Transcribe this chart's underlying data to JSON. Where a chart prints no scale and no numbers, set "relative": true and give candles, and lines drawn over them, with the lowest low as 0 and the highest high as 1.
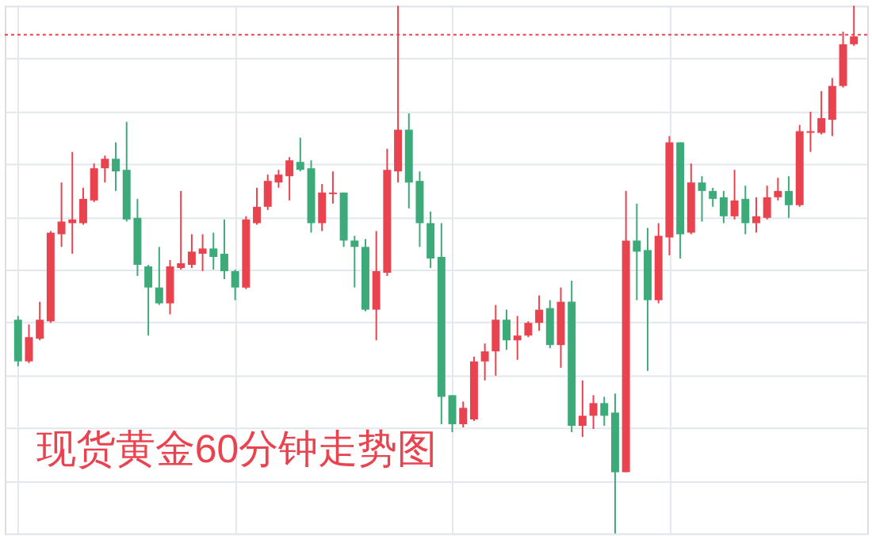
{
  "chart_data": {
    "type": "candlestick",
    "relative": true,
    "grid": true,
    "tick_labels": false,
    "annotations": [
      "现货黄金60分钟走势图"
    ],
    "ref_lines": [
      {
        "axis": "y",
        "value": 0.945,
        "label": null,
        "color": "#e8434f",
        "line_style": "dotted"
      }
    ],
    "categories": [
      null,
      null,
      null,
      null,
      null,
      null,
      null,
      null,
      null,
      null,
      null,
      null,
      null,
      null,
      null,
      null,
      null,
      null,
      null,
      null,
      null,
      null,
      null,
      null,
      null,
      null,
      null,
      null,
      null,
      null,
      null,
      null,
      null,
      null,
      null,
      null,
      null,
      null,
      null,
      null,
      null,
      null,
      null,
      null,
      null,
      null,
      null,
      null,
      null,
      null,
      null,
      null,
      null,
      null,
      null,
      null,
      null,
      null,
      null,
      null,
      null,
      null,
      null,
      null,
      null,
      null,
      null,
      null,
      null,
      null,
      null,
      null,
      null,
      null,
      null,
      null,
      null,
      null
    ],
    "ohlc": [
      [
        0.405,
        0.412,
        0.317,
        0.326
      ],
      [
        0.326,
        0.396,
        0.323,
        0.372
      ],
      [
        0.369,
        0.439,
        0.366,
        0.405
      ],
      [
        0.402,
        0.573,
        0.399,
        0.57
      ],
      [
        0.567,
        0.665,
        0.543,
        0.591
      ],
      [
        0.588,
        0.723,
        0.53,
        0.595
      ],
      [
        0.588,
        0.655,
        0.585,
        0.634
      ],
      [
        0.631,
        0.701,
        0.628,
        0.692
      ],
      [
        0.692,
        0.716,
        0.665,
        0.71
      ],
      [
        0.71,
        0.741,
        0.649,
        0.686
      ],
      [
        0.689,
        0.78,
        0.591,
        0.595
      ],
      [
        0.598,
        0.634,
        0.488,
        0.509
      ],
      [
        0.506,
        0.509,
        0.375,
        0.466
      ],
      [
        0.466,
        0.543,
        0.433,
        0.436
      ],
      [
        0.436,
        0.518,
        0.415,
        0.506
      ],
      [
        0.503,
        0.649,
        0.5,
        0.512
      ],
      [
        0.509,
        0.567,
        0.503,
        0.534
      ],
      [
        0.53,
        0.567,
        0.497,
        0.54
      ],
      [
        0.54,
        0.57,
        0.5,
        0.524
      ],
      [
        0.53,
        0.595,
        0.482,
        0.497
      ],
      [
        0.497,
        0.5,
        0.442,
        0.466
      ],
      [
        0.466,
        0.601,
        0.463,
        0.595
      ],
      [
        0.588,
        0.655,
        0.585,
        0.619
      ],
      [
        0.619,
        0.68,
        0.613,
        0.668
      ],
      [
        0.665,
        0.689,
        0.655,
        0.68
      ],
      [
        0.677,
        0.713,
        0.631,
        0.707
      ],
      [
        0.704,
        0.75,
        0.686,
        0.689
      ],
      [
        0.692,
        0.707,
        0.57,
        0.588
      ],
      [
        0.588,
        0.662,
        0.573,
        0.646
      ],
      [
        0.643,
        0.686,
        0.625,
        0.646
      ],
      [
        0.646,
        0.646,
        0.543,
        0.555
      ],
      [
        0.555,
        0.564,
        0.466,
        0.543
      ],
      [
        0.543,
        0.558,
        0.421,
        0.424
      ],
      [
        0.424,
        0.573,
        0.366,
        0.497
      ],
      [
        0.494,
        0.729,
        0.488,
        0.689
      ],
      [
        0.686,
        1,
        0.665,
        0.765
      ],
      [
        0.765,
        0.796,
        0.616,
        0.665
      ],
      [
        0.668,
        0.686,
        0.543,
        0.588
      ],
      [
        0.588,
        0.61,
        0.503,
        0.521
      ],
      [
        0.524,
        0.588,
        0.207,
        0.259
      ],
      [
        0.262,
        0.262,
        0.192,
        0.207
      ],
      [
        0.207,
        0.25,
        0.201,
        0.238
      ],
      [
        0.216,
        0.335,
        0.213,
        0.326
      ],
      [
        0.326,
        0.36,
        0.29,
        0.345
      ],
      [
        0.345,
        0.433,
        0.299,
        0.405
      ],
      [
        0.405,
        0.424,
        0.348,
        0.366
      ],
      [
        0.366,
        0.412,
        0.329,
        0.375
      ],
      [
        0.375,
        0.402,
        0.372,
        0.399
      ],
      [
        0.399,
        0.451,
        0.384,
        0.424
      ],
      [
        0.427,
        0.442,
        0.351,
        0.357
      ],
      [
        0.357,
        0.466,
        0.314,
        0.439
      ],
      [
        0.439,
        0.479,
        0.192,
        0.204
      ],
      [
        0.204,
        0.29,
        0.183,
        0.223
      ],
      [
        0.223,
        0.262,
        0.198,
        0.247
      ],
      [
        0.247,
        0.259,
        0.204,
        0.223
      ],
      [
        0.229,
        0.265,
        0,
        0.116
      ],
      [
        0.116,
        0.649,
        0.116,
        0.555
      ],
      [
        0.555,
        0.625,
        0.442,
        0.534
      ],
      [
        0.537,
        0.579,
        0.308,
        0.442
      ],
      [
        0.442,
        0.588,
        0.436,
        0.564
      ],
      [
        0.561,
        0.753,
        0.527,
        0.741
      ],
      [
        0.741,
        0.741,
        0.521,
        0.567
      ],
      [
        0.57,
        0.701,
        0.567,
        0.665
      ],
      [
        0.665,
        0.677,
        0.591,
        0.649
      ],
      [
        0.649,
        0.655,
        0.619,
        0.634
      ],
      [
        0.637,
        0.649,
        0.588,
        0.601
      ],
      [
        0.601,
        0.689,
        0.595,
        0.631
      ],
      [
        0.634,
        0.659,
        0.567,
        0.588
      ],
      [
        0.588,
        0.637,
        0.57,
        0.601
      ],
      [
        0.598,
        0.659,
        0.595,
        0.637
      ],
      [
        0.637,
        0.674,
        0.631,
        0.649
      ],
      [
        0.649,
        0.677,
        0.598,
        0.622
      ],
      [
        0.622,
        0.774,
        0.619,
        0.762
      ],
      [
        0.759,
        0.799,
        0.723,
        0.762
      ],
      [
        0.759,
        0.838,
        0.756,
        0.787
      ],
      [
        0.784,
        0.863,
        0.753,
        0.848
      ],
      [
        0.848,
        0.951,
        0.845,
        0.927
      ],
      [
        0.927,
        1,
        0.924,
        0.942
      ]
    ],
    "colors": [
      "#3daa7a",
      "#e8434f",
      "#e8434f",
      "#e8434f",
      "#e8434f",
      "#e8434f",
      "#e8434f",
      "#e8434f",
      "#e8434f",
      "#3daa7a",
      "#3daa7a",
      "#3daa7a",
      "#3daa7a",
      "#3daa7a",
      "#e8434f",
      "#e8434f",
      "#e8434f",
      "#e8434f",
      "#3daa7a",
      "#3daa7a",
      "#3daa7a",
      "#e8434f",
      "#e8434f",
      "#e8434f",
      "#e8434f",
      "#e8434f",
      "#3daa7a",
      "#3daa7a",
      "#e8434f",
      "#e8434f",
      "#3daa7a",
      "#3daa7a",
      "#3daa7a",
      "#e8434f",
      "#e8434f",
      "#e8434f",
      "#3daa7a",
      "#3daa7a",
      "#3daa7a",
      "#3daa7a",
      "#3daa7a",
      "#e8434f",
      "#e8434f",
      "#e8434f",
      "#e8434f",
      "#3daa7a",
      "#e8434f",
      "#e8434f",
      "#e8434f",
      "#3daa7a",
      "#e8434f",
      "#3daa7a",
      "#e8434f",
      "#e8434f",
      "#3daa7a",
      "#3daa7a",
      "#e8434f",
      "#3daa7a",
      "#3daa7a",
      "#e8434f",
      "#e8434f",
      "#3daa7a",
      "#e8434f",
      "#3daa7a",
      "#3daa7a",
      "#3daa7a",
      "#e8434f",
      "#3daa7a",
      "#e8434f",
      "#e8434f",
      "#e8434f",
      "#3daa7a",
      "#e8434f",
      "#e8434f",
      "#e8434f",
      "#e8434f",
      "#e8434f",
      "#e8434f"
    ]
  }
}
